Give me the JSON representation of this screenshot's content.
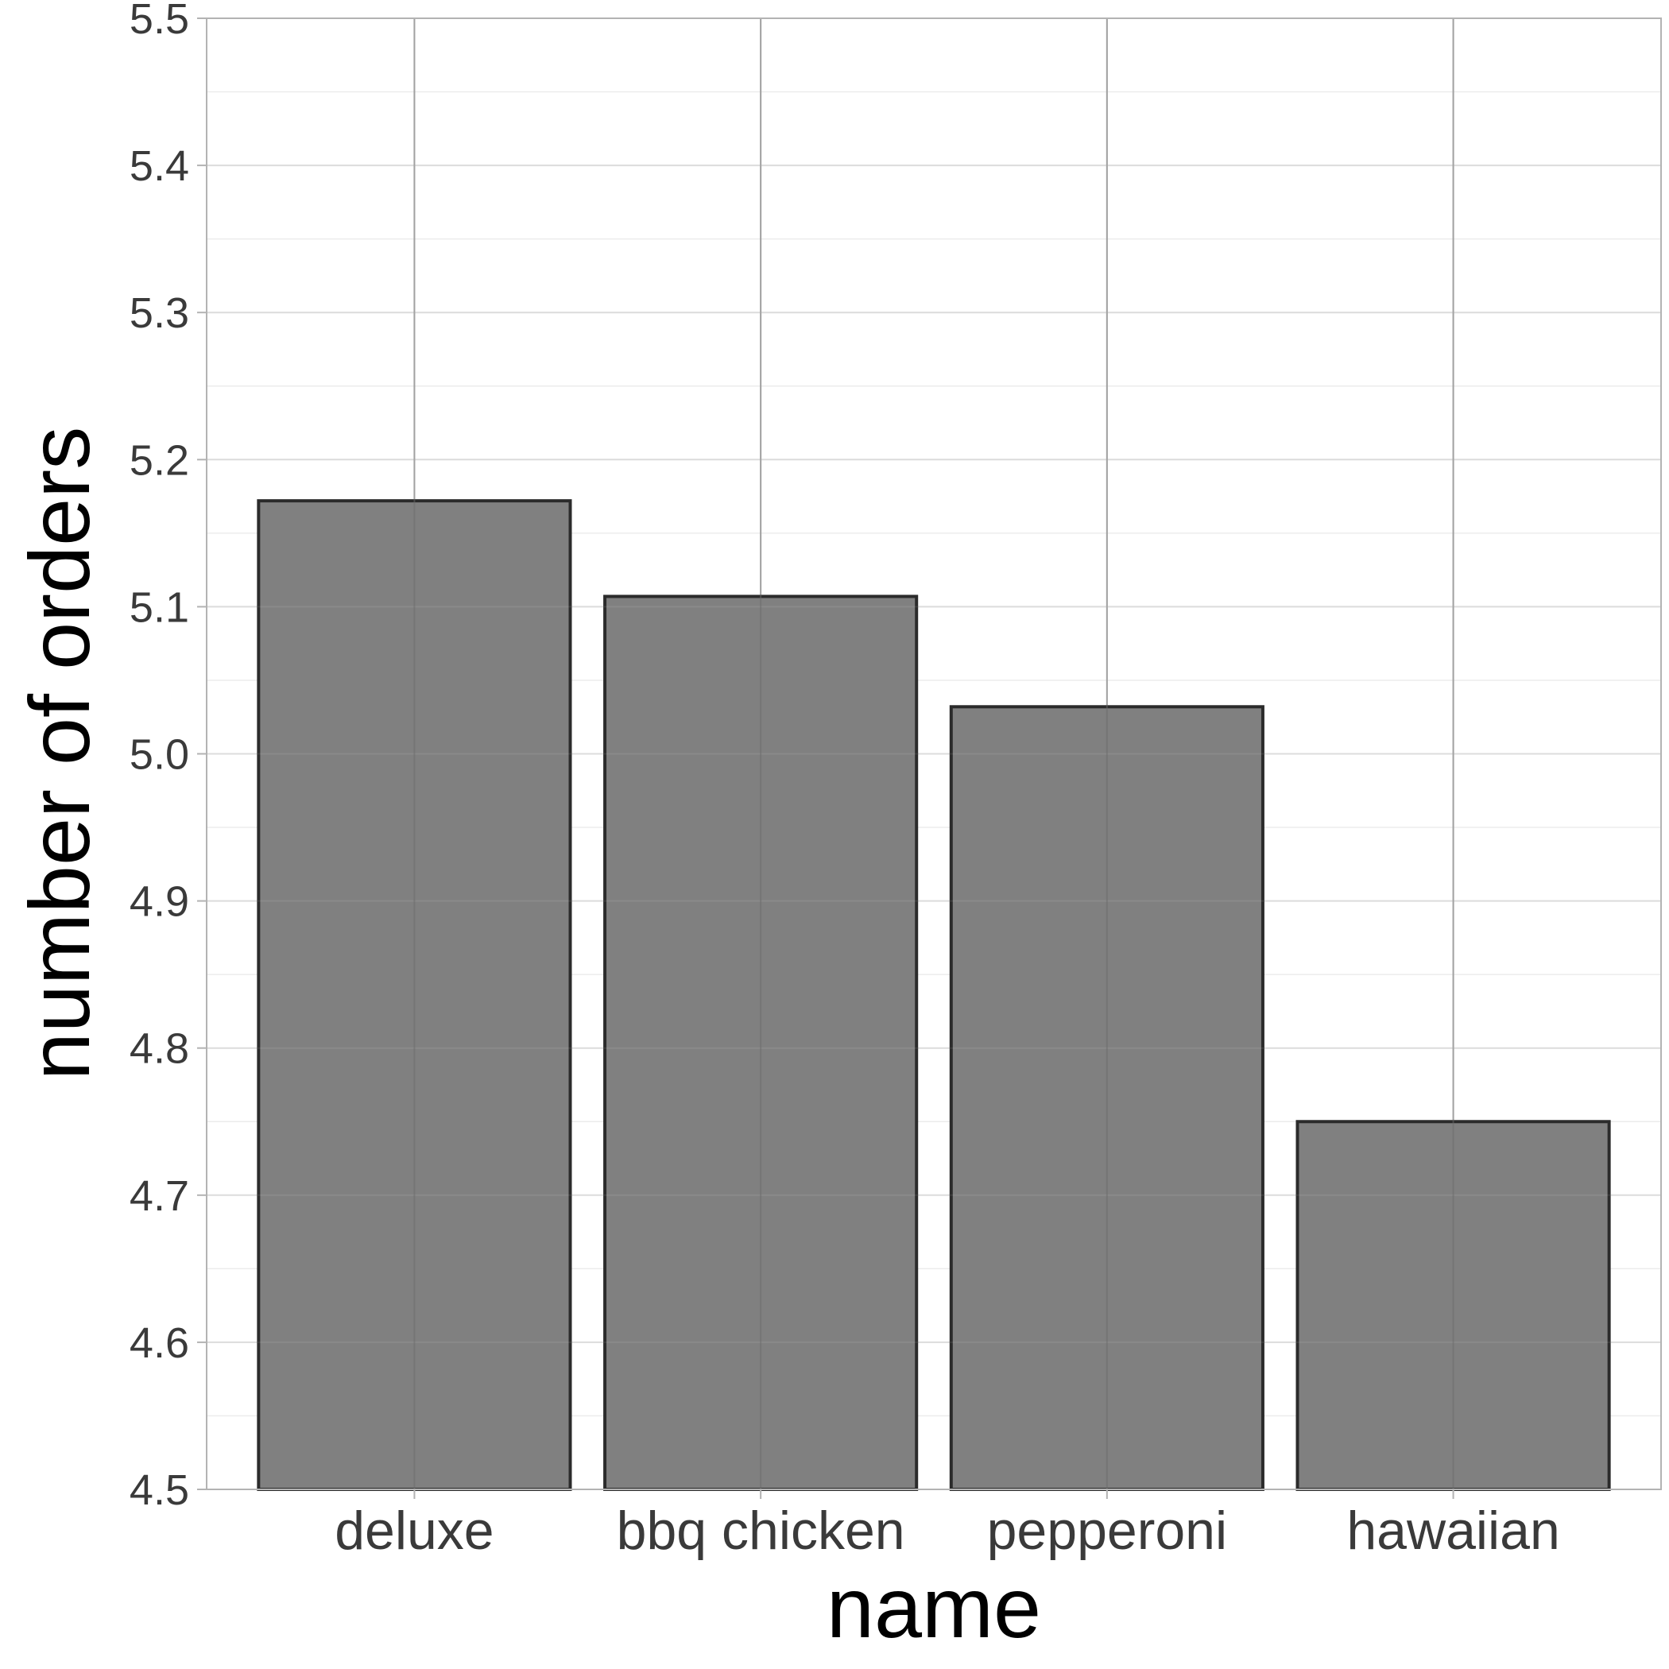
{
  "chart_data": {
    "type": "bar",
    "title": "",
    "xlabel": "name",
    "ylabel": "number of orders",
    "categories": [
      "deluxe",
      "bbq chicken",
      "pepperoni",
      "hawaiian"
    ],
    "values": [
      5.172,
      5.107,
      5.032,
      4.75
    ],
    "ylim": [
      4.5,
      5.5
    ],
    "y_ticks": [
      "4.5",
      "4.6",
      "4.7",
      "4.8",
      "4.9",
      "5.0",
      "5.1",
      "5.2",
      "5.3",
      "5.4",
      "5.5"
    ],
    "grid": true,
    "legend": "none",
    "colors": {
      "bar_fill": "#808080",
      "bar_outline": "#2b2b2b",
      "background": "#ffffff"
    }
  }
}
